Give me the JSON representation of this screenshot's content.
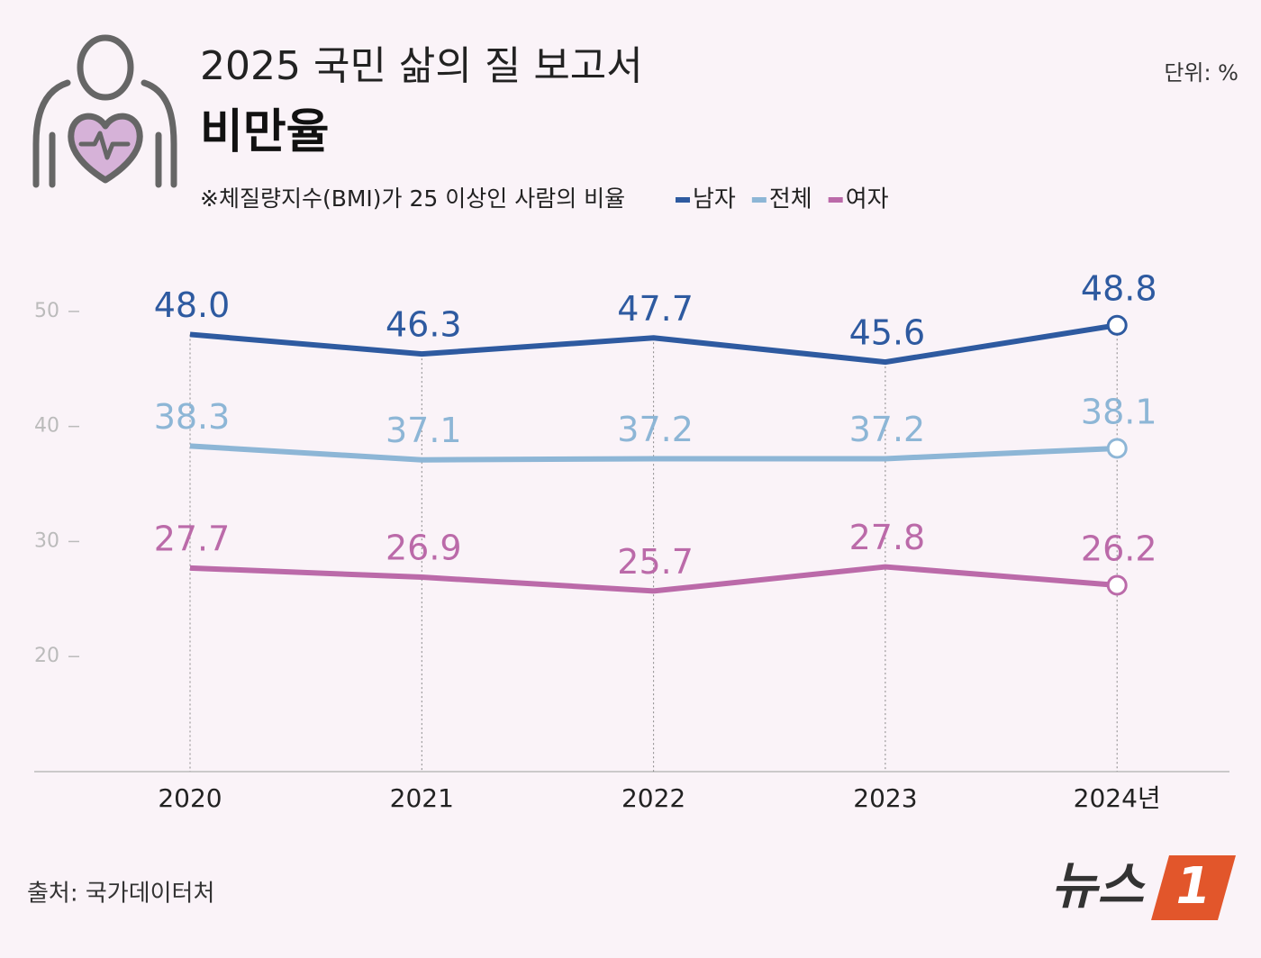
{
  "chart_data": {
    "type": "line",
    "title": "2025 국민 삶의 질 보고서",
    "subtitle": "비만율",
    "note": "※체질량지수(BMI)가 25 이상인 사람의 비율",
    "unit": "단위: %",
    "source": "출처: 국가데이터처",
    "logo": {
      "text": "뉴스",
      "number": "1"
    },
    "categories": [
      "2020",
      "2021",
      "2022",
      "2023",
      "2024년"
    ],
    "series": [
      {
        "name": "남자",
        "color": "#2e5aa0",
        "values": [
          48.0,
          46.3,
          47.7,
          45.6,
          48.8
        ],
        "value_labels": [
          "48.0",
          "46.3",
          "47.7",
          "45.6",
          "48.8"
        ]
      },
      {
        "name": "전체",
        "color": "#8db6d6",
        "values": [
          38.3,
          37.1,
          37.2,
          37.2,
          38.1
        ],
        "value_labels": [
          "38.3",
          "37.1",
          "37.2",
          "37.2",
          "38.1"
        ]
      },
      {
        "name": "여자",
        "color": "#bb6aa9",
        "values": [
          27.7,
          26.9,
          25.7,
          27.8,
          26.2
        ],
        "value_labels": [
          "27.7",
          "26.9",
          "25.7",
          "27.8",
          "26.2"
        ]
      }
    ],
    "ylim": [
      10,
      55
    ],
    "yticks": [
      20,
      30,
      40,
      50
    ]
  }
}
